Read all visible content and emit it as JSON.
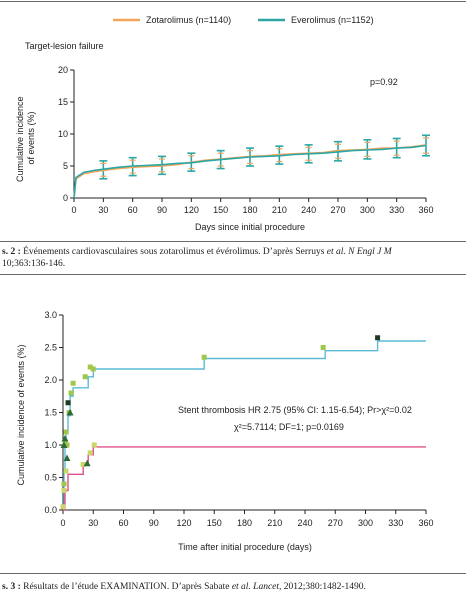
{
  "chart_data": [
    {
      "type": "line",
      "title": "Target-lesion failure",
      "xlabel": "Days since initial procedure",
      "ylabel": "Cumulative incidence of events (%)",
      "xlim": [
        0,
        360
      ],
      "ylim": [
        0,
        20
      ],
      "xticks": [
        0,
        30,
        60,
        90,
        120,
        150,
        180,
        210,
        240,
        270,
        300,
        330,
        360
      ],
      "yticks": [
        0,
        5,
        10,
        15,
        20
      ],
      "legend_position": "top",
      "annotation": "p=0.92",
      "series": [
        {
          "name": "Zotarolimus (n=1140)",
          "color": "#f2a65a",
          "x": [
            0,
            2,
            10,
            20,
            30,
            45,
            60,
            75,
            90,
            105,
            120,
            135,
            150,
            165,
            180,
            195,
            210,
            225,
            240,
            255,
            270,
            285,
            300,
            315,
            330,
            345,
            360
          ],
          "y": [
            0,
            3.0,
            3.8,
            4.1,
            4.3,
            4.6,
            4.8,
            4.9,
            5.0,
            5.2,
            5.6,
            5.9,
            6.1,
            6.3,
            6.5,
            6.6,
            6.8,
            6.9,
            7.0,
            7.1,
            7.4,
            7.5,
            7.6,
            7.8,
            7.8,
            8.0,
            8.3
          ]
        },
        {
          "name": "Everolimus (n=1152)",
          "color": "#2ba6a4",
          "x": [
            0,
            2,
            10,
            20,
            30,
            45,
            60,
            75,
            90,
            105,
            120,
            135,
            150,
            165,
            180,
            195,
            210,
            225,
            240,
            255,
            270,
            285,
            300,
            315,
            330,
            345,
            360
          ],
          "y": [
            0,
            3.2,
            4.0,
            4.3,
            4.5,
            4.8,
            5.0,
            5.1,
            5.2,
            5.4,
            5.5,
            5.8,
            6.0,
            6.2,
            6.4,
            6.5,
            6.6,
            6.8,
            6.9,
            7.0,
            7.2,
            7.4,
            7.5,
            7.6,
            7.8,
            7.9,
            8.2
          ]
        }
      ],
      "error_bars": {
        "x": [
          30,
          60,
          90,
          120,
          150,
          180,
          210,
          240,
          270,
          300,
          330,
          360
        ],
        "center": [
          4.4,
          4.9,
          5.1,
          5.6,
          6.0,
          6.4,
          6.7,
          6.9,
          7.3,
          7.6,
          7.8,
          8.2
        ],
        "low": [
          3.0,
          3.5,
          3.7,
          4.2,
          4.6,
          5.0,
          5.3,
          5.5,
          5.8,
          6.1,
          6.3,
          6.6
        ],
        "high": [
          5.8,
          6.3,
          6.5,
          7.0,
          7.4,
          7.8,
          8.1,
          8.3,
          8.8,
          9.1,
          9.3,
          9.8
        ]
      }
    },
    {
      "type": "line",
      "title": "",
      "xlabel": "Time after initial procedure (days)",
      "ylabel": "Cumulative incidence of events (%)",
      "xlim": [
        0,
        360
      ],
      "ylim": [
        0,
        3.0
      ],
      "xticks": [
        0,
        30,
        60,
        90,
        120,
        150,
        180,
        210,
        240,
        270,
        300,
        330,
        360
      ],
      "yticks": [
        0.0,
        0.5,
        1.0,
        1.5,
        2.0,
        2.5,
        3.0
      ],
      "annotation_line1": "Stent thrombosis HR 2.75 (95% CI: 1.15-6.54); Pr>χ²=0.02",
      "annotation_line2": "χ²=5.7114; DF=1; p=0.0169",
      "series": [
        {
          "color": "#5bbbd6",
          "x": [
            0,
            1,
            2,
            3,
            5,
            7,
            10,
            20,
            25,
            30,
            140,
            260,
            312,
            360
          ],
          "y": [
            0,
            0.6,
            1.0,
            1.2,
            1.45,
            1.75,
            1.88,
            1.88,
            2.05,
            2.17,
            2.33,
            2.45,
            2.6,
            2.6
          ]
        },
        {
          "color": "#e0508a",
          "x": [
            0,
            2,
            5,
            20,
            25,
            30,
            360
          ],
          "y": [
            0,
            0.3,
            0.55,
            0.7,
            0.85,
            0.97,
            0.97
          ]
        }
      ],
      "markers_green": {
        "x": [
          1,
          2,
          3,
          4,
          6,
          8,
          10,
          22,
          27,
          30,
          140,
          258
        ],
        "y": [
          0.4,
          1.05,
          1.2,
          1.0,
          1.5,
          1.8,
          1.95,
          2.05,
          2.2,
          2.17,
          2.35,
          2.5
        ]
      },
      "markers_triangle": {
        "x": [
          1,
          2,
          4,
          7,
          24
        ],
        "y": [
          1.0,
          1.1,
          0.8,
          1.5,
          0.72
        ]
      },
      "markers_black": {
        "x": [
          5,
          312
        ],
        "y": [
          1.65,
          2.65
        ]
      },
      "markers_pink_square": {
        "x": [
          0,
          1,
          3,
          20,
          27,
          31
        ],
        "y": [
          0.05,
          0.3,
          0.6,
          0.7,
          0.88,
          1.0
        ]
      }
    }
  ],
  "captions": {
    "fig2_label": "s. 2 :",
    "fig2_text_a": "Événements cardiovasculaires sous zotarolimus et évérolimus. D’après Serruys ",
    "fig2_italic": "et al. N Engl J M",
    "fig2_text_b": "10;363:136-146.",
    "fig3_label": "s. 3 :",
    "fig3_text_a": "Résultats de l’étude EXAMINATION. D’après Sabate ",
    "fig3_italic": "et al. Lancet,",
    "fig3_text_b": " 2012;380:1482-1490."
  }
}
